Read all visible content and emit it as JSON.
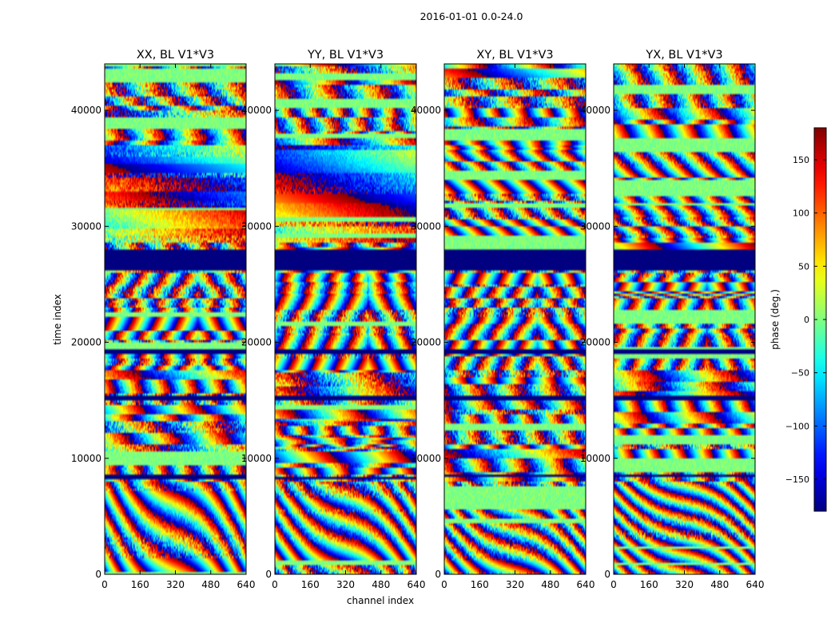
{
  "chart_data": {
    "type": "heatmap",
    "suptitle": "2016-01-01 0.0-24.0",
    "xlabel": "channel index",
    "ylabel": "time index",
    "xlim": [
      0,
      640
    ],
    "ylim": [
      0,
      44000
    ],
    "xticks": [
      "0",
      "160",
      "320",
      "480",
      "640"
    ],
    "yticks": [
      "0",
      "10000",
      "20000",
      "30000",
      "40000"
    ],
    "panels": [
      {
        "title": "XX, BL V1*V3"
      },
      {
        "title": "YY, BL V1*V3"
      },
      {
        "title": "XY, BL V1*V3"
      },
      {
        "title": "YX, BL V1*V3"
      }
    ],
    "colorbar": {
      "label": "phase (deg.)",
      "range": [
        -180,
        180
      ],
      "ticks": [
        "150",
        "100",
        "50",
        "0",
        "−50",
        "−100",
        "−150"
      ],
      "colormap": "jet"
    }
  }
}
